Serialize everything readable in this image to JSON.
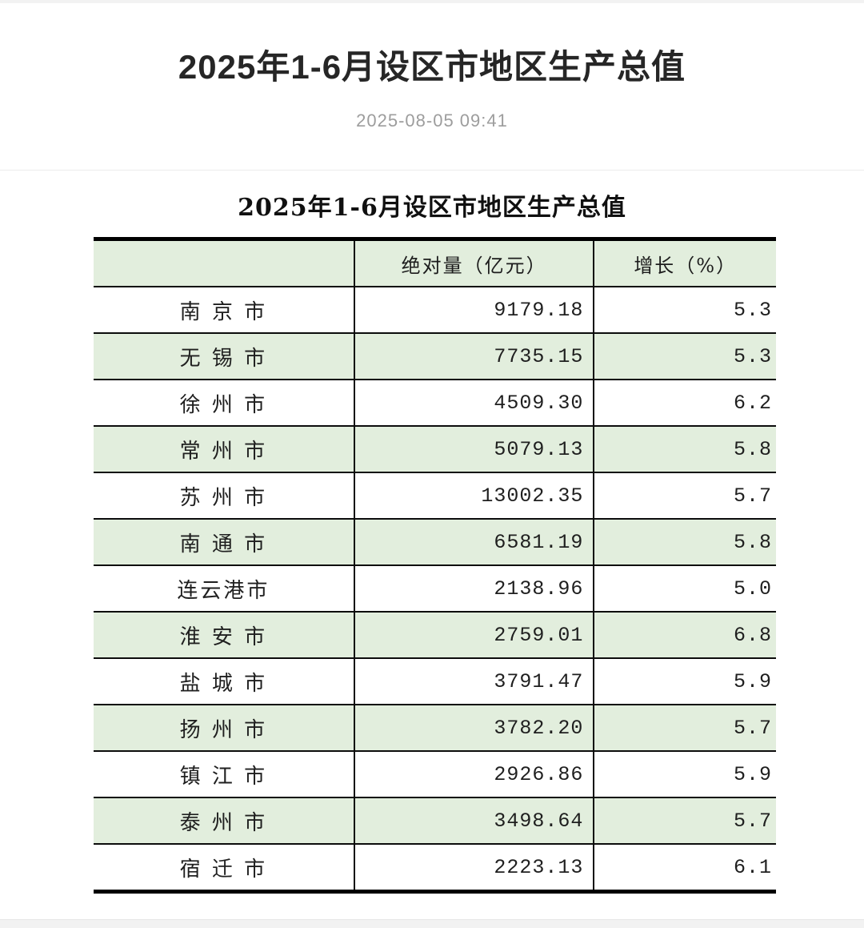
{
  "header": {
    "title": "2025年1-6月设区市地区生产总值",
    "timestamp": "2025-08-05 09:41"
  },
  "table": {
    "title": "2025年1-6月设区市地区生产总值",
    "columns": [
      "",
      "绝对量（亿元）",
      "增长（%）"
    ],
    "rows": [
      {
        "city": "南 京 市",
        "value": "9179.18",
        "growth": "5.3"
      },
      {
        "city": "无 锡 市",
        "value": "7735.15",
        "growth": "5.3"
      },
      {
        "city": "徐 州 市",
        "value": "4509.30",
        "growth": "6.2"
      },
      {
        "city": "常 州 市",
        "value": "5079.13",
        "growth": "5.8"
      },
      {
        "city": "苏 州 市",
        "value": "13002.35",
        "growth": "5.7"
      },
      {
        "city": "南 通 市",
        "value": "6581.19",
        "growth": "5.8"
      },
      {
        "city": "连云港市",
        "value": "2138.96",
        "growth": "5.0"
      },
      {
        "city": "淮 安 市",
        "value": "2759.01",
        "growth": "6.8"
      },
      {
        "city": "盐 城 市",
        "value": "3791.47",
        "growth": "5.9"
      },
      {
        "city": "扬 州 市",
        "value": "3782.20",
        "growth": "5.7"
      },
      {
        "city": "镇 江 市",
        "value": "2926.86",
        "growth": "5.9"
      },
      {
        "city": "泰 州 市",
        "value": "3498.64",
        "growth": "5.7"
      },
      {
        "city": "宿 迁 市",
        "value": "2223.13",
        "growth": "6.1"
      }
    ]
  },
  "colors": {
    "row_alt_green": "#e2eedd",
    "table_border_black": "#000000",
    "title_text": "#262626",
    "timestamp_gray": "#9d9d9d",
    "page_background_gray": "#f2f2f2"
  }
}
